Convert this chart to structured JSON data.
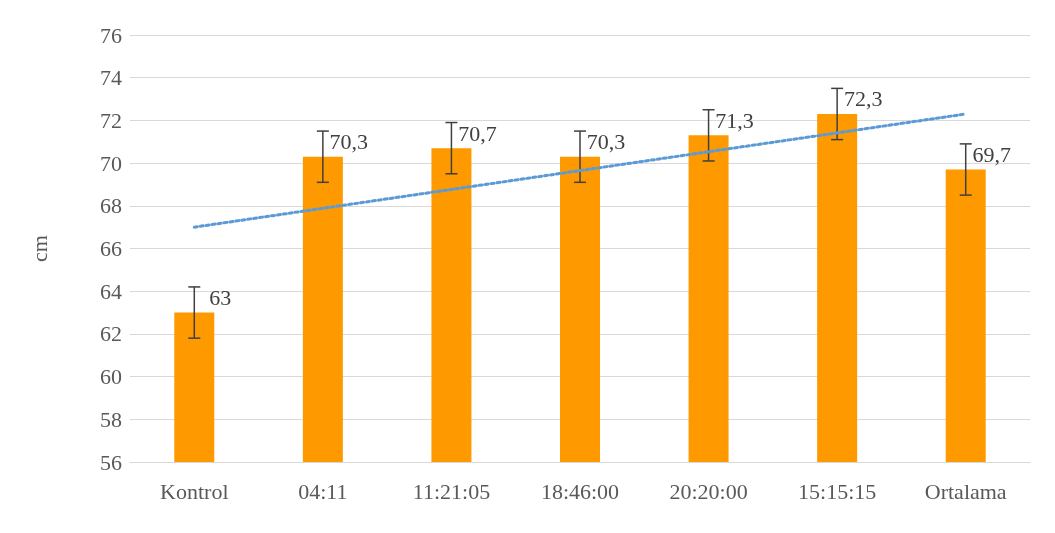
{
  "chart_data": {
    "type": "bar",
    "ylabel": "cm",
    "categories": [
      "Kontrol",
      "04:11",
      "11:21:05",
      "18:46:00",
      "20:20:00",
      "15:15:15",
      "Ortalama"
    ],
    "series": [
      {
        "color": "#ff9900",
        "values": [
          63,
          70.3,
          70.7,
          70.3,
          71.3,
          72.3,
          69.7
        ],
        "errors": [
          1.2,
          1.2,
          1.2,
          1.2,
          1.2,
          1.2,
          1.2
        ],
        "value_labels": [
          "63",
          "70,3",
          "70,7",
          "70,3",
          "71,3",
          "72,3",
          "69,7"
        ]
      },
      {
        "type": "line",
        "color": "#5b9bd5",
        "line_style": "dotted",
        "marker": "none",
        "x": [
          "Kontrol",
          "Ortalama"
        ],
        "values": [
          67.0,
          72.3
        ]
      }
    ],
    "ylim": [
      56,
      76
    ],
    "yticks": [
      56,
      58,
      60,
      62,
      64,
      66,
      68,
      70,
      72,
      74,
      76
    ],
    "grid": "y"
  }
}
